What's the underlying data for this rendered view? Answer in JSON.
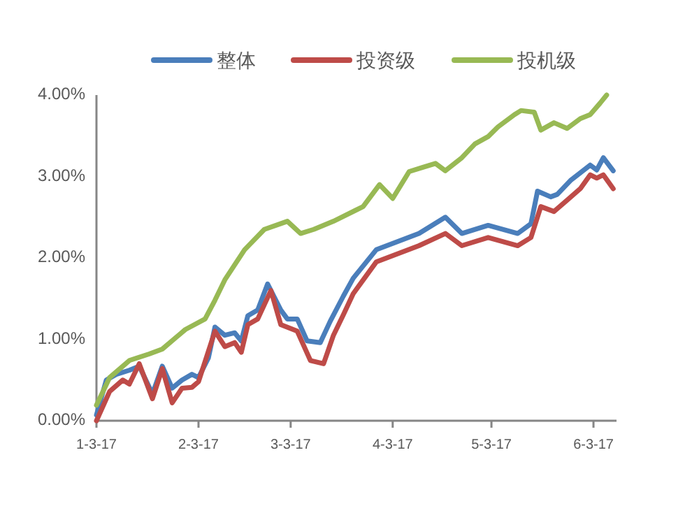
{
  "chart_data": {
    "type": "line",
    "xlim": [
      "2017-01-03",
      "2017-06-10"
    ],
    "ylim": [
      0,
      4
    ],
    "xticks": [
      {
        "value": "2017-01-03",
        "label": "1-3-17"
      },
      {
        "value": "2017-02-03",
        "label": "2-3-17"
      },
      {
        "value": "2017-03-03",
        "label": "3-3-17"
      },
      {
        "value": "2017-04-03",
        "label": "4-3-17"
      },
      {
        "value": "2017-05-03",
        "label": "5-3-17"
      },
      {
        "value": "2017-06-03",
        "label": "6-3-17"
      }
    ],
    "yticks": [
      {
        "value": 0,
        "label": "0.00%"
      },
      {
        "value": 1,
        "label": "1.00%"
      },
      {
        "value": 2,
        "label": "2.00%"
      },
      {
        "value": 3,
        "label": "3.00%"
      },
      {
        "value": 4,
        "label": "4.00%"
      }
    ],
    "grid": false,
    "legend": "top",
    "marker": "none",
    "line_style": "solid",
    "series": [
      {
        "name": "整体",
        "color": "#4a7ebb",
        "x": [
          "2017-01-03",
          "2017-01-06",
          "2017-01-09",
          "2017-01-13",
          "2017-01-16",
          "2017-01-20",
          "2017-01-23",
          "2017-01-26",
          "2017-01-29",
          "2017-02-01",
          "2017-02-03",
          "2017-02-06",
          "2017-02-08",
          "2017-02-11",
          "2017-02-14",
          "2017-02-16",
          "2017-02-18",
          "2017-02-21",
          "2017-02-24",
          "2017-02-28",
          "2017-03-02",
          "2017-03-05",
          "2017-03-08",
          "2017-03-12",
          "2017-03-15",
          "2017-03-19",
          "2017-03-22",
          "2017-03-29",
          "2017-04-11",
          "2017-04-19",
          "2017-04-24",
          "2017-05-02",
          "2017-05-11",
          "2017-05-15",
          "2017-05-17",
          "2017-05-21",
          "2017-05-23",
          "2017-05-27",
          "2017-06-02",
          "2017-06-04",
          "2017-06-06",
          "2017-06-09"
        ],
        "values": [
          0.07,
          0.5,
          0.57,
          0.62,
          0.67,
          0.33,
          0.67,
          0.4,
          0.5,
          0.57,
          0.53,
          0.77,
          1.15,
          1.05,
          1.08,
          0.98,
          1.29,
          1.36,
          1.68,
          1.36,
          1.25,
          1.25,
          0.98,
          0.96,
          1.22,
          1.53,
          1.75,
          2.1,
          2.3,
          2.5,
          2.3,
          2.4,
          2.3,
          2.42,
          2.82,
          2.75,
          2.78,
          2.95,
          3.14,
          3.08,
          3.23,
          3.07
        ]
      },
      {
        "name": "投资级",
        "color": "#be4b48",
        "x": [
          "2017-01-03",
          "2017-01-07",
          "2017-01-11",
          "2017-01-13",
          "2017-01-16",
          "2017-01-20",
          "2017-01-23",
          "2017-01-26",
          "2017-01-29",
          "2017-02-01",
          "2017-02-03",
          "2017-02-08",
          "2017-02-11",
          "2017-02-14",
          "2017-02-16",
          "2017-02-18",
          "2017-02-21",
          "2017-02-25",
          "2017-02-28",
          "2017-03-05",
          "2017-03-09",
          "2017-03-13",
          "2017-03-16",
          "2017-03-19",
          "2017-03-22",
          "2017-03-29",
          "2017-04-11",
          "2017-04-19",
          "2017-04-24",
          "2017-05-02",
          "2017-05-11",
          "2017-05-15",
          "2017-05-18",
          "2017-05-22",
          "2017-05-26",
          "2017-05-30",
          "2017-06-02",
          "2017-06-04",
          "2017-06-06",
          "2017-06-09"
        ],
        "values": [
          0,
          0.36,
          0.5,
          0.45,
          0.7,
          0.27,
          0.64,
          0.22,
          0.4,
          0.41,
          0.48,
          1.1,
          0.91,
          0.96,
          0.84,
          1.18,
          1.25,
          1.6,
          1.18,
          1.1,
          0.74,
          0.7,
          1.05,
          1.3,
          1.56,
          1.95,
          2.15,
          2.3,
          2.15,
          2.25,
          2.15,
          2.25,
          2.63,
          2.57,
          2.71,
          2.85,
          3.02,
          2.98,
          3.02,
          2.85
        ]
      },
      {
        "name": "投机级",
        "color": "#98b954",
        "x": [
          "2017-01-03",
          "2017-01-07",
          "2017-01-13",
          "2017-01-19",
          "2017-01-23",
          "2017-01-30",
          "2017-02-05",
          "2017-02-08",
          "2017-02-11",
          "2017-02-17",
          "2017-02-23",
          "2017-03-02",
          "2017-03-06",
          "2017-03-10",
          "2017-03-16",
          "2017-03-25",
          "2017-03-30",
          "2017-04-03",
          "2017-04-08",
          "2017-04-12",
          "2017-04-16",
          "2017-04-19",
          "2017-04-24",
          "2017-04-28",
          "2017-05-02",
          "2017-05-05",
          "2017-05-10",
          "2017-05-12",
          "2017-05-16",
          "2017-05-18",
          "2017-05-22",
          "2017-05-26",
          "2017-05-30",
          "2017-06-02",
          "2017-06-05",
          "2017-06-07"
        ],
        "values": [
          0.19,
          0.53,
          0.74,
          0.82,
          0.88,
          1.12,
          1.25,
          1.48,
          1.73,
          2.1,
          2.35,
          2.45,
          2.3,
          2.35,
          2.45,
          2.63,
          2.9,
          2.73,
          3.06,
          3.11,
          3.16,
          3.07,
          3.23,
          3.4,
          3.49,
          3.61,
          3.76,
          3.81,
          3.79,
          3.57,
          3.66,
          3.59,
          3.71,
          3.76,
          3.9,
          4.0
        ]
      }
    ]
  }
}
